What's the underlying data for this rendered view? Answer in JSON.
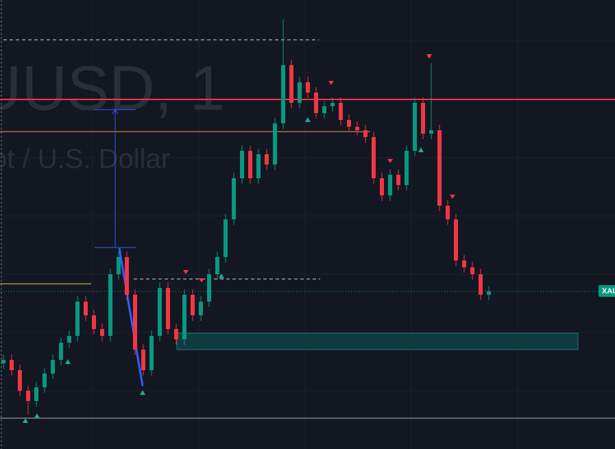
{
  "chart_data": {
    "type": "candlestick",
    "watermark": "UUSD, 1",
    "subtitle": "ot / U.S. Dollar",
    "price_label": "XAU",
    "ylim": [
      0,
      655
    ],
    "up_color": "#089981",
    "down_color": "#f23645",
    "open": [
      125,
      130,
      115,
      85,
      70,
      90,
      110,
      130,
      155,
      165,
      215,
      195,
      175,
      165,
      255,
      280,
      225,
      145,
      115,
      165,
      235,
      175,
      160,
      225,
      195,
      215,
      255,
      280,
      335,
      395,
      435,
      395,
      430,
      415,
      475,
      560,
      505,
      535,
      520,
      490,
      500,
      505,
      480,
      470,
      465,
      455,
      395,
      370,
      400,
      385,
      435,
      505,
      460,
      465,
      355,
      335,
      275,
      265,
      255,
      225
    ],
    "high": [
      138,
      138,
      123,
      93,
      98,
      118,
      138,
      163,
      173,
      223,
      223,
      203,
      183,
      263,
      288,
      288,
      233,
      153,
      173,
      243,
      243,
      183,
      233,
      233,
      223,
      263,
      288,
      343,
      403,
      443,
      443,
      438,
      438,
      483,
      627,
      568,
      543,
      543,
      528,
      508,
      513,
      513,
      488,
      478,
      473,
      463,
      403,
      408,
      408,
      443,
      513,
      513,
      563,
      473,
      363,
      343,
      283,
      273,
      263,
      238
    ],
    "low": [
      117,
      107,
      77,
      50,
      62,
      82,
      102,
      122,
      147,
      157,
      187,
      167,
      157,
      157,
      247,
      217,
      137,
      107,
      107,
      157,
      167,
      152,
      152,
      187,
      187,
      207,
      247,
      272,
      327,
      387,
      387,
      387,
      407,
      407,
      467,
      497,
      497,
      512,
      482,
      482,
      492,
      472,
      462,
      457,
      447,
      387,
      362,
      362,
      377,
      377,
      427,
      452,
      452,
      347,
      327,
      267,
      257,
      247,
      217,
      217
    ],
    "close": [
      130,
      115,
      85,
      70,
      90,
      110,
      130,
      155,
      165,
      215,
      195,
      175,
      165,
      255,
      280,
      225,
      145,
      115,
      165,
      235,
      175,
      160,
      225,
      195,
      215,
      255,
      280,
      335,
      395,
      435,
      395,
      430,
      415,
      475,
      560,
      505,
      535,
      520,
      490,
      500,
      505,
      480,
      470,
      465,
      455,
      395,
      370,
      400,
      385,
      435,
      505,
      460,
      465,
      355,
      335,
      275,
      265,
      255,
      225,
      230
    ]
  }
}
